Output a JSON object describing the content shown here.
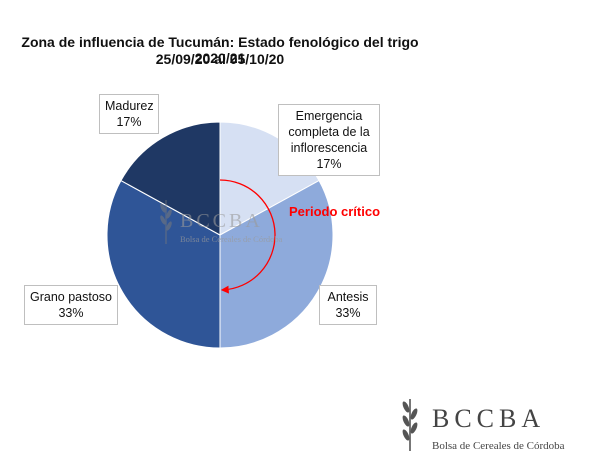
{
  "chart_data": {
    "type": "pie",
    "title": "Zona de influencia de Tucumán: Estado fenológico del trigo 2020/21",
    "subtitle": "25/09/20 al 05/10/20",
    "slices": [
      {
        "label": "Emergencia completa de la inflorescencia",
        "value": 17,
        "value_label": "17%",
        "color": "#d6e0f3"
      },
      {
        "label": "Antesis",
        "value": 33,
        "value_label": "33%",
        "color": "#8eaadb"
      },
      {
        "label": "Grano pastoso",
        "value": 33,
        "value_label": "33%",
        "color": "#2f5597"
      },
      {
        "label": "Madurez",
        "value": 17,
        "value_label": "17%",
        "color": "#1f3864"
      }
    ],
    "annotation": "Periodo crítico",
    "annotation_color": "#ff0000"
  },
  "watermark": {
    "name": "BCCBA",
    "subtitle": "Bolsa de Cereales de Córdoba"
  },
  "logo": {
    "name": "BCCBA",
    "subtitle": "Bolsa de Cereales de Córdoba"
  }
}
